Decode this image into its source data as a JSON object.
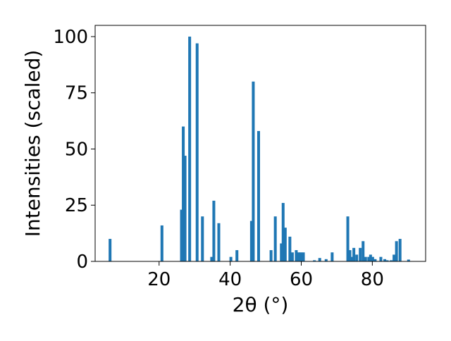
{
  "chart_data": {
    "type": "bar",
    "xlabel": "2θ (°)",
    "ylabel": "Intensities (scaled)",
    "xlim": [
      2,
      95
    ],
    "ylim": [
      0,
      105
    ],
    "xticks": [
      20,
      40,
      60,
      80
    ],
    "yticks": [
      0,
      25,
      50,
      75,
      100
    ],
    "grid": false,
    "bar_color": "#1f77b4",
    "bar_width": 0.8,
    "x": [
      6.2,
      20.8,
      26.3,
      26.8,
      27.3,
      28.6,
      30.7,
      32.2,
      34.8,
      35.4,
      36.8,
      40.2,
      41.9,
      46.0,
      46.5,
      48.0,
      51.5,
      52.7,
      54.4,
      54.9,
      55.5,
      56.8,
      57.5,
      58.6,
      59.3,
      59.9,
      60.6,
      63.7,
      65.2,
      67.0,
      68.7,
      73.1,
      73.7,
      74.4,
      74.8,
      75.6,
      76.6,
      77.4,
      78.1,
      79.0,
      79.5,
      80.1,
      80.8,
      82.4,
      83.5,
      84.2,
      85.3,
      86.1,
      86.8,
      87.8,
      90.2
    ],
    "values": [
      10,
      16,
      23,
      60,
      47,
      100,
      97,
      20,
      2,
      27,
      17,
      2,
      5,
      18,
      80,
      58,
      5,
      20,
      8,
      26,
      15,
      11,
      4,
      5,
      4,
      4,
      4,
      0.5,
      1.5,
      1,
      4,
      20,
      5,
      2,
      6,
      3,
      6,
      9,
      2,
      2,
      3,
      2,
      1,
      2,
      1,
      0.5,
      0.5,
      3,
      9,
      10,
      0.8
    ]
  }
}
